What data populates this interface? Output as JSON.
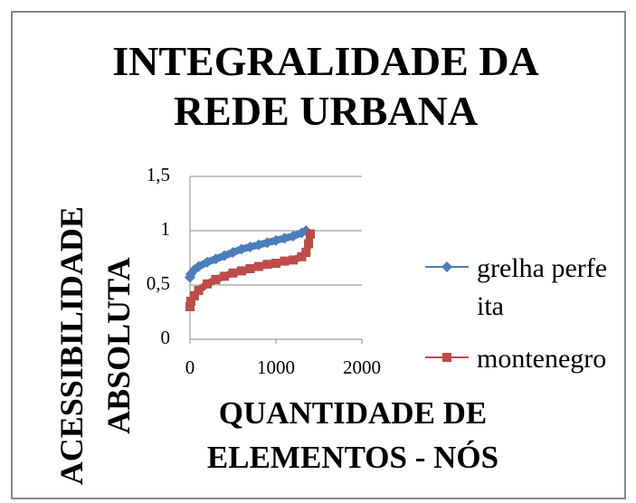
{
  "chart_data": {
    "type": "line",
    "title": "INTEGRALIDADE DA REDE URBANA",
    "x_label": "QUANTIDADE DE ELEMENTOS - NÓS",
    "y_label": "ACESSIBILIDADE ABSOLUTA",
    "xlim": [
      0,
      2000
    ],
    "xticks": [
      0,
      1000,
      2000
    ],
    "ylim": [
      0,
      1.5
    ],
    "yticks": [
      0,
      {
        "value": 0.5,
        "label": "0,5"
      },
      1,
      {
        "value": 1.5,
        "label": "1,5"
      }
    ],
    "grid": true,
    "legend": "right",
    "series": [
      {
        "name": "grelha perfeita",
        "color": "#4a7ebb",
        "marker": "diamond",
        "x": [
          0,
          10,
          50,
          100,
          200,
          300,
          400,
          500,
          600,
          700,
          800,
          900,
          1000,
          1100,
          1200,
          1300,
          1350
        ],
        "values": [
          0.57,
          0.6,
          0.64,
          0.67,
          0.71,
          0.74,
          0.77,
          0.8,
          0.83,
          0.85,
          0.87,
          0.89,
          0.91,
          0.93,
          0.95,
          0.98,
          1.0
        ]
      },
      {
        "name": "montenegro",
        "color": "#be4b48",
        "marker": "square",
        "x": [
          0,
          10,
          50,
          100,
          200,
          300,
          400,
          500,
          600,
          700,
          800,
          900,
          1000,
          1100,
          1200,
          1300,
          1350,
          1380,
          1400
        ],
        "values": [
          0.3,
          0.35,
          0.4,
          0.45,
          0.51,
          0.55,
          0.58,
          0.61,
          0.63,
          0.65,
          0.67,
          0.69,
          0.7,
          0.72,
          0.73,
          0.76,
          0.8,
          0.88,
          0.97
        ]
      }
    ]
  }
}
